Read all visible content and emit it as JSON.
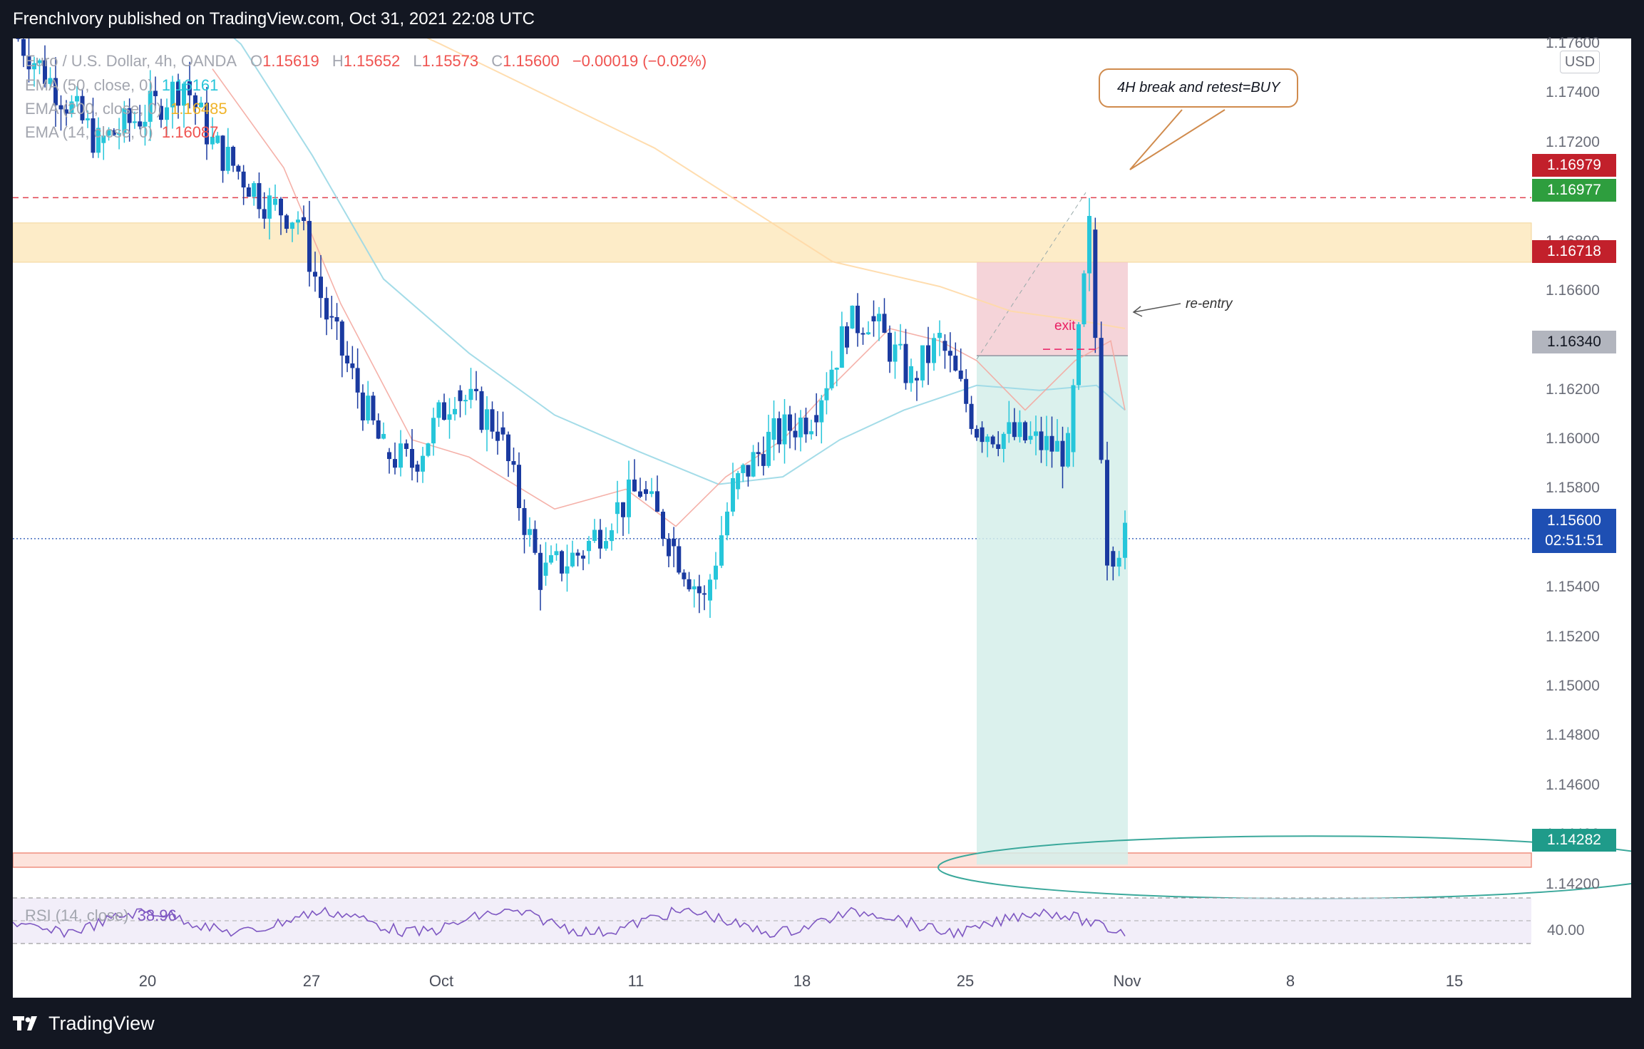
{
  "header": {
    "publish_line": "FrenchIvory published on TradingView.com, Oct 31, 2021 22:08 UTC"
  },
  "legend": {
    "symbol": "Euro / U.S. Dollar, 4h, OANDA",
    "open_label": "O",
    "open": "1.15619",
    "high_label": "H",
    "high": "1.15652",
    "low_label": "L",
    "low": "1.15573",
    "close_label": "C",
    "close": "1.15600",
    "change": "−0.00019 (−0.02%)",
    "ema50_label": "EMA (50, close, 0)",
    "ema50_value": "1.16161",
    "ema200_label": "EMA (200, close, 0)",
    "ema200_value": "1.16485",
    "ema14_label": "EMA (14, close, 0)",
    "ema14_value": "1.16087",
    "rsi_label": "RSI (14, close)",
    "rsi_value": "38.96"
  },
  "annotations": {
    "callout": "4H break and retest=BUY",
    "reentry": "re-entry",
    "exit": "exit"
  },
  "price_axis": {
    "currency": "USD",
    "ticks": [
      "1.17600",
      "1.17400",
      "1.17200",
      "1.16800",
      "1.16600",
      "1.16400",
      "1.16200",
      "1.16000",
      "1.15800",
      "1.15400",
      "1.15200",
      "1.15000",
      "1.14800",
      "1.14600",
      "1.14400",
      "1.14200"
    ],
    "rsi_tick": "40.00",
    "tags": {
      "upper_line": "1.16979",
      "high_level": "1.16977",
      "stop": "1.16718",
      "entry": "1.16340",
      "current": "1.15600",
      "countdown": "02:51:51",
      "target": "1.14282"
    }
  },
  "time_axis": {
    "labels": [
      "20",
      "27",
      "Oct",
      "11",
      "18",
      "25",
      "Nov",
      "8",
      "15"
    ]
  },
  "footer": {
    "brand": "TradingView"
  },
  "colors": {
    "up": "#26c6da",
    "down": "#1a3aa0",
    "ema50": "#9ad8e6",
    "ema200": "#ffd9a6",
    "ema14": "#f4a9a0",
    "zone": "#fdecc8",
    "stop_zone": "#f1c6cc",
    "target_zone": "#d5eeea",
    "rsi": "#7e57c2"
  },
  "chart_data": {
    "type": "candlestick",
    "timeframe": "4h",
    "ylim": [
      1.1415,
      1.1762
    ],
    "levels": {
      "resistance_zone": [
        1.16718,
        1.16877
      ],
      "support_zone": [
        1.1424,
        1.143
      ],
      "upper_dashed": 1.16979,
      "entry": 1.1634,
      "stop": 1.16718,
      "target": 1.14282,
      "current": 1.156
    },
    "close_path": [
      [
        "Sep 16",
        1.1765
      ],
      [
        "Sep 20",
        1.172
      ],
      [
        "Sep 22",
        1.1735
      ],
      [
        "Sep 23",
        1.1745
      ],
      [
        "Sep 24",
        1.172
      ],
      [
        "Sep 27",
        1.1695
      ],
      [
        "Sep 28",
        1.169
      ],
      [
        "Sep 29",
        1.165
      ],
      [
        "Sep 30",
        1.1595
      ],
      [
        "Oct 1",
        1.159
      ],
      [
        "Oct 4",
        1.162
      ],
      [
        "Oct 5",
        1.1605
      ],
      [
        "Oct 6",
        1.1545
      ],
      [
        "Oct 7",
        1.1555
      ],
      [
        "Oct 8",
        1.157
      ],
      [
        "Oct 11",
        1.158
      ],
      [
        "Oct 12",
        1.156
      ],
      [
        "Oct 13",
        1.1535
      ],
      [
        "Oct 14",
        1.158
      ],
      [
        "Oct 15",
        1.16
      ],
      [
        "Oct 18",
        1.161
      ],
      [
        "Oct 19",
        1.1645
      ],
      [
        "Oct 20",
        1.165
      ],
      [
        "Oct 21",
        1.1625
      ],
      [
        "Oct 22",
        1.164
      ],
      [
        "Oct 25",
        1.1605
      ],
      [
        "Oct 26",
        1.16
      ],
      [
        "Oct 27",
        1.1595
      ],
      [
        "Oct 28",
        1.1685
      ],
      [
        "Oct 29",
        1.1555
      ],
      [
        "Oct 31",
        1.156
      ]
    ]
  }
}
